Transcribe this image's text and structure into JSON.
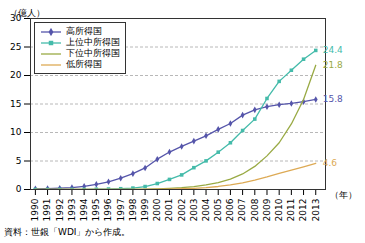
{
  "chart_data": {
    "type": "line",
    "x": [
      1990,
      1991,
      1992,
      1993,
      1994,
      1995,
      1996,
      1997,
      1998,
      1999,
      2000,
      2001,
      2002,
      2003,
      2004,
      2005,
      2006,
      2007,
      2008,
      2009,
      2010,
      2011,
      2012,
      2013
    ],
    "xlim": [
      1989.6,
      2013.8
    ],
    "xticks": [
      1990,
      1991,
      1992,
      1993,
      1994,
      1995,
      1996,
      1997,
      1998,
      1999,
      2000,
      2001,
      2002,
      2003,
      2004,
      2005,
      2006,
      2007,
      2008,
      2009,
      2010,
      2011,
      2012,
      2013
    ],
    "ylim": [
      0,
      30
    ],
    "yticks": [
      0,
      5,
      10,
      15,
      20,
      25,
      30
    ],
    "xlabel": "（年）",
    "ylabel": "（億人）",
    "caption": "資料：世銀「WDI」から作成。",
    "grid": true,
    "legend": "upper left",
    "series": [
      {
        "name": "高所得国",
        "color": "#5555aa",
        "marker": "diamond",
        "values": [
          0.11,
          0.16,
          0.23,
          0.34,
          0.56,
          0.9,
          1.35,
          1.98,
          2.78,
          3.78,
          5.32,
          6.57,
          7.55,
          8.49,
          9.42,
          10.55,
          11.58,
          13.05,
          13.97,
          14.53,
          14.88,
          15.1,
          15.4,
          15.8
        ]
      },
      {
        "name": "上位中所得国",
        "color": "#44bbaa",
        "marker": "square",
        "values": [
          0.01,
          0.01,
          0.02,
          0.02,
          0.03,
          0.05,
          0.08,
          0.14,
          0.25,
          0.52,
          1.05,
          1.77,
          2.56,
          3.83,
          5.02,
          6.55,
          8.2,
          10.35,
          12.35,
          15.97,
          18.97,
          20.92,
          22.86,
          24.4
        ]
      },
      {
        "name": "下位中所得国",
        "color": "#99aa44",
        "values": [
          0.0,
          0.0,
          0.0,
          0.0,
          0.01,
          0.01,
          0.01,
          0.02,
          0.03,
          0.06,
          0.12,
          0.2,
          0.32,
          0.52,
          0.8,
          1.2,
          1.82,
          2.73,
          4.05,
          5.9,
          8.2,
          11.5,
          15.8,
          21.8
        ]
      },
      {
        "name": "低所得国",
        "color": "#ddaa55",
        "values": [
          0.0,
          0.0,
          0.0,
          0.0,
          0.0,
          0.01,
          0.01,
          0.01,
          0.02,
          0.03,
          0.05,
          0.08,
          0.13,
          0.21,
          0.33,
          0.53,
          0.8,
          1.18,
          1.65,
          2.2,
          2.82,
          3.4,
          3.99,
          4.6
        ]
      }
    ],
    "annotations": [
      {
        "text": "15.8",
        "x": 2013,
        "y": 15.8,
        "color": "#5555aa"
      },
      {
        "text": "24.4",
        "x": 2013,
        "y": 24.4,
        "color": "#44bbaa"
      },
      {
        "text": "21.8",
        "x": 2013,
        "y": 21.8,
        "color": "#99aa44"
      },
      {
        "text": "4.6",
        "x": 2013,
        "y": 4.6,
        "color": "#ddaa55"
      }
    ]
  }
}
